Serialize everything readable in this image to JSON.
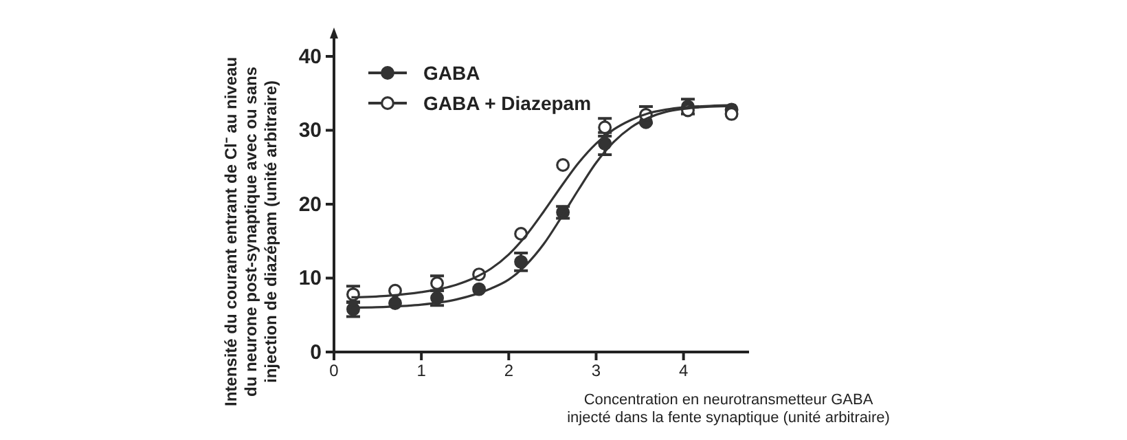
{
  "chart_data": {
    "type": "scatter",
    "xlabel": "Concentration  en neurotransmetteur GABA\ninjecté dans la fente synaptique (unité arbitraire)",
    "ylabel": "Intensité du courant entrant de Cl⁻ au niveau\ndu neurone post-synaptique avec ou sans\ninjection de diazépam (unité arbitraire)",
    "xlim": [
      0,
      4.75
    ],
    "ylim": [
      0,
      40
    ],
    "xticks": [
      0,
      1,
      2,
      3,
      4
    ],
    "yticks": [
      0,
      10,
      20,
      30,
      40
    ],
    "grid": false,
    "legend": "top left",
    "marker": "circle",
    "series": [
      {
        "name": "GABA",
        "color": "#333333",
        "x": [
          0.22,
          0.7,
          1.18,
          1.66,
          2.14,
          2.62,
          3.1,
          3.57,
          4.05,
          4.55
        ],
        "values": [
          5.8,
          6.6,
          7.3,
          8.5,
          12.2,
          18.9,
          28.2,
          31.1,
          33.2,
          32.8
        ],
        "errors": [
          1.0,
          null,
          1.0,
          null,
          1.2,
          0.8,
          1.5,
          null,
          1.0,
          null
        ]
      },
      {
        "name": "GABA + Diazepam",
        "color": "#ffffff",
        "x": [
          0.22,
          0.7,
          1.18,
          1.66,
          2.14,
          2.62,
          3.1,
          3.57,
          4.05,
          4.55
        ],
        "values": [
          7.8,
          8.3,
          9.3,
          10.5,
          16.0,
          25.3,
          30.4,
          32.1,
          32.7,
          32.2
        ],
        "errors": [
          1.1,
          null,
          1.0,
          null,
          null,
          null,
          1.2,
          1.1,
          null,
          null
        ]
      },
      {
        "type": "line",
        "marker": "none",
        "color": "#333333",
        "x": [
          0.2,
          0.6,
          1.0,
          1.4,
          1.8,
          2.0,
          2.2,
          2.4,
          2.6,
          2.8,
          3.0,
          3.2,
          3.4,
          3.6,
          3.8,
          4.0,
          4.3,
          4.6
        ],
        "values": [
          6.0,
          6.1,
          6.4,
          7.1,
          8.6,
          9.8,
          11.8,
          14.6,
          18.2,
          22.0,
          25.6,
          28.4,
          30.4,
          31.7,
          32.5,
          32.9,
          33.2,
          33.3
        ]
      },
      {
        "type": "line",
        "marker": "none",
        "color": "#333333",
        "x": [
          0.2,
          0.6,
          1.0,
          1.4,
          1.6,
          1.8,
          2.0,
          2.2,
          2.4,
          2.6,
          2.8,
          3.0,
          3.2,
          3.4,
          3.6,
          3.8,
          4.0,
          4.3,
          4.6
        ],
        "values": [
          7.4,
          7.6,
          8.1,
          9.1,
          10.0,
          11.3,
          13.2,
          15.8,
          19.0,
          22.4,
          25.6,
          28.2,
          30.1,
          31.4,
          32.3,
          32.8,
          33.1,
          33.3,
          33.4
        ]
      }
    ]
  }
}
